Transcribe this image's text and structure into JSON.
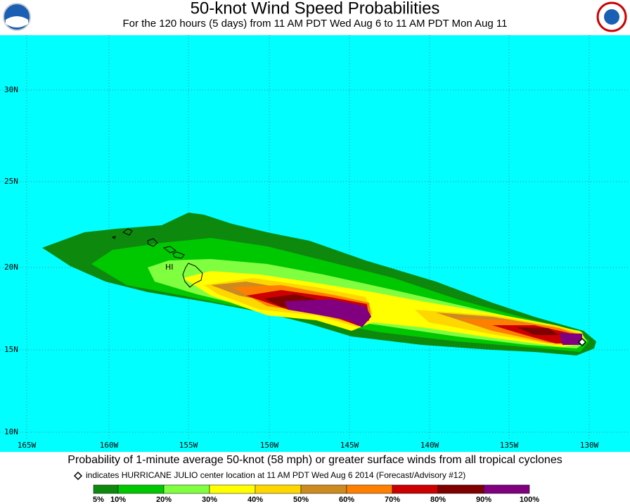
{
  "header": {
    "title": "50-knot Wind Speed Probabilities",
    "subtitle": "For the 120 hours (5 days) from 11 AM PDT Wed Aug 6 to 11 AM PDT Mon Aug 11"
  },
  "map": {
    "latitude_labels": [
      "30N",
      "25N",
      "20N",
      "15N",
      "10N"
    ],
    "longitude_labels": [
      "165W",
      "160W",
      "155W",
      "150W",
      "145W",
      "140W",
      "135W",
      "130W"
    ],
    "place_label": "HI"
  },
  "footer": {
    "caption": "Probability of 1-minute average 50-knot (58 mph) or greater surface winds from all tropical cyclones",
    "note": "indicates HURRICANE JULIO center location at 11 AM PDT Wed Aug 6 2014 (Forecast/Advisory #12)",
    "legend": [
      "5%",
      "10%",
      "20%",
      "30%",
      "40%",
      "50%",
      "60%",
      "70%",
      "80%",
      "90%",
      "100%"
    ]
  }
}
